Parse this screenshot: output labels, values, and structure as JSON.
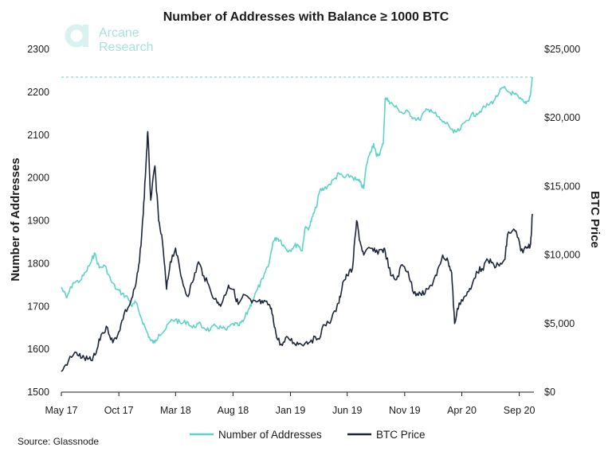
{
  "chart_data": {
    "type": "line",
    "title": "Number of Addresses with Balance ≥ 1000 BTC",
    "source": "Source: Glassnode",
    "logo": {
      "line1": "Arcane",
      "line2": "Research"
    },
    "ylabel_left": "Number of Addresses",
    "ylabel_right": "BTC Price",
    "x_ticks": [
      "May 17",
      "Oct 17",
      "Mar 18",
      "Aug 18",
      "Jan 19",
      "Jun 19",
      "Nov 19",
      "Apr 20",
      "Sep 20"
    ],
    "x_tick_values": [
      "2017-05-01",
      "2017-10-01",
      "2018-03-01",
      "2018-08-01",
      "2019-01-01",
      "2019-06-01",
      "2019-11-01",
      "2020-04-01",
      "2020-09-01"
    ],
    "xlim": [
      "2017-05-01",
      "2020-10-10"
    ],
    "ylim_left": [
      1500,
      2300
    ],
    "yticks_left": [
      "1500",
      "1600",
      "1700",
      "1800",
      "1900",
      "2000",
      "2100",
      "2200",
      "2300"
    ],
    "ylim_right": [
      0,
      25000
    ],
    "yticks_right": [
      "$0",
      "$5,000",
      "$10,000",
      "$15,000",
      "$20,000",
      "$25,000"
    ],
    "reference_line": {
      "axis": "left",
      "value": 2235,
      "color": "#5ed3c7",
      "style": "dashed"
    },
    "legend_position": "bottom",
    "grid": false,
    "series": [
      {
        "name": "Number of Addresses",
        "axis": "left",
        "color": "#5ed3c7",
        "points": [
          [
            "2017-05-01",
            1745
          ],
          [
            "2017-05-15",
            1720
          ],
          [
            "2017-06-01",
            1755
          ],
          [
            "2017-06-20",
            1760
          ],
          [
            "2017-07-05",
            1780
          ],
          [
            "2017-07-20",
            1805
          ],
          [
            "2017-07-28",
            1825
          ],
          [
            "2017-08-10",
            1790
          ],
          [
            "2017-08-25",
            1795
          ],
          [
            "2017-09-10",
            1760
          ],
          [
            "2017-09-25",
            1740
          ],
          [
            "2017-10-10",
            1730
          ],
          [
            "2017-10-25",
            1720
          ],
          [
            "2017-11-05",
            1700
          ],
          [
            "2017-11-15",
            1710
          ],
          [
            "2017-12-01",
            1670
          ],
          [
            "2017-12-15",
            1640
          ],
          [
            "2017-12-25",
            1620
          ],
          [
            "2018-01-05",
            1615
          ],
          [
            "2018-01-15",
            1635
          ],
          [
            "2018-02-01",
            1645
          ],
          [
            "2018-02-15",
            1665
          ],
          [
            "2018-03-01",
            1670
          ],
          [
            "2018-03-15",
            1660
          ],
          [
            "2018-04-01",
            1665
          ],
          [
            "2018-04-15",
            1650
          ],
          [
            "2018-05-01",
            1660
          ],
          [
            "2018-05-15",
            1650
          ],
          [
            "2018-06-01",
            1645
          ],
          [
            "2018-06-15",
            1655
          ],
          [
            "2018-07-01",
            1650
          ],
          [
            "2018-07-15",
            1645
          ],
          [
            "2018-08-01",
            1660
          ],
          [
            "2018-08-15",
            1655
          ],
          [
            "2018-08-28",
            1665
          ],
          [
            "2018-09-10",
            1690
          ],
          [
            "2018-09-20",
            1710
          ],
          [
            "2018-10-05",
            1740
          ],
          [
            "2018-10-20",
            1765
          ],
          [
            "2018-11-05",
            1800
          ],
          [
            "2018-11-15",
            1850
          ],
          [
            "2018-11-25",
            1860
          ],
          [
            "2018-12-05",
            1855
          ],
          [
            "2018-12-15",
            1840
          ],
          [
            "2018-12-28",
            1830
          ],
          [
            "2019-01-10",
            1840
          ],
          [
            "2019-01-20",
            1845
          ],
          [
            "2019-02-01",
            1830
          ],
          [
            "2019-02-08",
            1880
          ],
          [
            "2019-02-20",
            1885
          ],
          [
            "2019-03-01",
            1910
          ],
          [
            "2019-03-10",
            1930
          ],
          [
            "2019-03-20",
            1970
          ],
          [
            "2019-04-01",
            1975
          ],
          [
            "2019-04-15",
            1985
          ],
          [
            "2019-05-01",
            2000
          ],
          [
            "2019-05-10",
            2010
          ],
          [
            "2019-05-25",
            2000
          ],
          [
            "2019-06-10",
            2005
          ],
          [
            "2019-06-25",
            1995
          ],
          [
            "2019-07-05",
            1990
          ],
          [
            "2019-07-15",
            1975
          ],
          [
            "2019-07-22",
            2030
          ],
          [
            "2019-08-01",
            2060
          ],
          [
            "2019-08-10",
            2080
          ],
          [
            "2019-08-18",
            2050
          ],
          [
            "2019-08-28",
            2060
          ],
          [
            "2019-09-05",
            2080
          ],
          [
            "2019-09-10",
            2185
          ],
          [
            "2019-09-20",
            2180
          ],
          [
            "2019-10-01",
            2170
          ],
          [
            "2019-10-15",
            2160
          ],
          [
            "2019-10-28",
            2150
          ],
          [
            "2019-11-10",
            2155
          ],
          [
            "2019-11-25",
            2140
          ],
          [
            "2019-12-10",
            2135
          ],
          [
            "2019-12-25",
            2155
          ],
          [
            "2020-01-10",
            2160
          ],
          [
            "2020-01-25",
            2145
          ],
          [
            "2020-02-10",
            2130
          ],
          [
            "2020-02-25",
            2125
          ],
          [
            "2020-03-10",
            2105
          ],
          [
            "2020-03-25",
            2110
          ],
          [
            "2020-04-10",
            2130
          ],
          [
            "2020-04-25",
            2145
          ],
          [
            "2020-05-10",
            2150
          ],
          [
            "2020-05-25",
            2160
          ],
          [
            "2020-06-10",
            2170
          ],
          [
            "2020-06-25",
            2180
          ],
          [
            "2020-07-10",
            2200
          ],
          [
            "2020-07-20",
            2210
          ],
          [
            "2020-08-05",
            2200
          ],
          [
            "2020-08-20",
            2195
          ],
          [
            "2020-09-01",
            2185
          ],
          [
            "2020-09-15",
            2175
          ],
          [
            "2020-09-25",
            2180
          ],
          [
            "2020-10-01",
            2195
          ],
          [
            "2020-10-06",
            2235
          ]
        ]
      },
      {
        "name": "BTC Price",
        "axis": "right",
        "color": "#1d2639",
        "points": [
          [
            "2017-05-01",
            1500
          ],
          [
            "2017-05-20",
            2300
          ],
          [
            "2017-06-10",
            2900
          ],
          [
            "2017-06-25",
            2500
          ],
          [
            "2017-07-10",
            2400
          ],
          [
            "2017-07-20",
            2300
          ],
          [
            "2017-08-01",
            2800
          ],
          [
            "2017-08-15",
            4200
          ],
          [
            "2017-09-01",
            4700
          ],
          [
            "2017-09-15",
            3600
          ],
          [
            "2017-10-01",
            4400
          ],
          [
            "2017-10-15",
            5700
          ],
          [
            "2017-11-01",
            6500
          ],
          [
            "2017-11-15",
            7800
          ],
          [
            "2017-11-25",
            9500
          ],
          [
            "2017-12-05",
            13000
          ],
          [
            "2017-12-12",
            16500
          ],
          [
            "2017-12-17",
            19000
          ],
          [
            "2017-12-25",
            14000
          ],
          [
            "2018-01-05",
            16500
          ],
          [
            "2018-01-15",
            12500
          ],
          [
            "2018-01-25",
            11000
          ],
          [
            "2018-02-05",
            7500
          ],
          [
            "2018-02-15",
            9500
          ],
          [
            "2018-03-01",
            10500
          ],
          [
            "2018-03-15",
            8500
          ],
          [
            "2018-04-01",
            7000
          ],
          [
            "2018-04-15",
            8000
          ],
          [
            "2018-05-01",
            9500
          ],
          [
            "2018-05-15",
            8500
          ],
          [
            "2018-06-01",
            7500
          ],
          [
            "2018-06-20",
            6500
          ],
          [
            "2018-07-01",
            6400
          ],
          [
            "2018-07-20",
            7800
          ],
          [
            "2018-08-01",
            7500
          ],
          [
            "2018-08-15",
            6400
          ],
          [
            "2018-09-01",
            7100
          ],
          [
            "2018-09-20",
            6500
          ],
          [
            "2018-10-05",
            6600
          ],
          [
            "2018-10-20",
            6500
          ],
          [
            "2018-11-05",
            6400
          ],
          [
            "2018-11-15",
            5600
          ],
          [
            "2018-11-25",
            4000
          ],
          [
            "2018-12-10",
            3400
          ],
          [
            "2018-12-25",
            4000
          ],
          [
            "2019-01-10",
            3600
          ],
          [
            "2019-01-25",
            3550
          ],
          [
            "2019-02-10",
            3600
          ],
          [
            "2019-02-25",
            3800
          ],
          [
            "2019-03-15",
            3900
          ],
          [
            "2019-04-02",
            4900
          ],
          [
            "2019-04-20",
            5300
          ],
          [
            "2019-05-10",
            6500
          ],
          [
            "2019-05-20",
            8000
          ],
          [
            "2019-06-01",
            8500
          ],
          [
            "2019-06-15",
            9000
          ],
          [
            "2019-06-26",
            12500
          ],
          [
            "2019-07-05",
            11000
          ],
          [
            "2019-07-15",
            10000
          ],
          [
            "2019-08-01",
            10500
          ],
          [
            "2019-08-15",
            10200
          ],
          [
            "2019-09-01",
            10400
          ],
          [
            "2019-09-10",
            10300
          ],
          [
            "2019-09-25",
            8500
          ],
          [
            "2019-10-10",
            8200
          ],
          [
            "2019-10-25",
            9300
          ],
          [
            "2019-11-10",
            8800
          ],
          [
            "2019-11-25",
            7200
          ],
          [
            "2019-12-10",
            7300
          ],
          [
            "2019-12-25",
            7200
          ],
          [
            "2020-01-10",
            7800
          ],
          [
            "2020-01-25",
            8500
          ],
          [
            "2020-02-10",
            10000
          ],
          [
            "2020-02-25",
            9500
          ],
          [
            "2020-03-05",
            8700
          ],
          [
            "2020-03-13",
            5000
          ],
          [
            "2020-03-25",
            6500
          ],
          [
            "2020-04-10",
            7000
          ],
          [
            "2020-04-25",
            7500
          ],
          [
            "2020-05-10",
            8800
          ],
          [
            "2020-05-25",
            9000
          ],
          [
            "2020-06-10",
            9600
          ],
          [
            "2020-06-25",
            9300
          ],
          [
            "2020-07-10",
            9200
          ],
          [
            "2020-07-25",
            9700
          ],
          [
            "2020-08-01",
            11500
          ],
          [
            "2020-08-15",
            11800
          ],
          [
            "2020-08-25",
            11600
          ],
          [
            "2020-09-05",
            10300
          ],
          [
            "2020-09-20",
            10500
          ],
          [
            "2020-10-01",
            10800
          ],
          [
            "2020-10-06",
            13000
          ]
        ]
      }
    ]
  }
}
